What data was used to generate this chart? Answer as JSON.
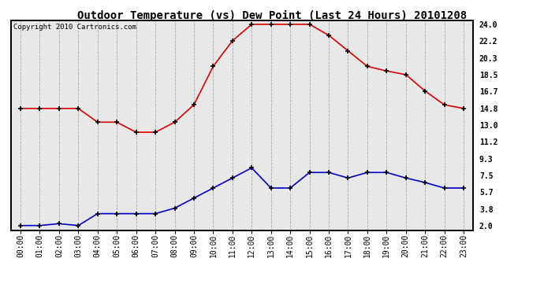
{
  "title": "Outdoor Temperature (vs) Dew Point (Last 24 Hours) 20101208",
  "copyright": "Copyright 2010 Cartronics.com",
  "hours": [
    "00:00",
    "01:00",
    "02:00",
    "03:00",
    "04:00",
    "05:00",
    "06:00",
    "07:00",
    "08:00",
    "09:00",
    "10:00",
    "11:00",
    "12:00",
    "13:00",
    "14:00",
    "15:00",
    "16:00",
    "17:00",
    "18:00",
    "19:00",
    "20:00",
    "21:00",
    "22:00",
    "23:00"
  ],
  "temp": [
    14.8,
    14.8,
    14.8,
    14.8,
    13.3,
    13.3,
    12.2,
    12.2,
    13.3,
    15.2,
    19.4,
    22.2,
    24.0,
    24.0,
    24.0,
    24.0,
    22.8,
    21.1,
    19.4,
    18.9,
    18.5,
    16.7,
    15.2,
    14.8
  ],
  "dew": [
    2.0,
    2.0,
    2.2,
    2.0,
    3.3,
    3.3,
    3.3,
    3.3,
    3.9,
    5.0,
    6.1,
    7.2,
    8.3,
    6.1,
    6.1,
    7.8,
    7.8,
    7.2,
    7.8,
    7.8,
    7.2,
    6.7,
    6.1,
    6.1
  ],
  "temp_color": "#dd0000",
  "dew_color": "#0000cc",
  "yticks_right": [
    2.0,
    3.8,
    5.7,
    7.5,
    9.3,
    11.2,
    13.0,
    14.8,
    16.7,
    18.5,
    20.3,
    22.2,
    24.0
  ],
  "ymin": 1.5,
  "ymax": 24.4,
  "bg_color": "#ffffff",
  "plot_bg_color": "#e8e8e8",
  "grid_color": "#aaaaaa",
  "marker": "+",
  "marker_size": 5,
  "marker_edge_width": 1.2,
  "line_width": 1.2,
  "title_fontsize": 10,
  "tick_fontsize": 7,
  "copyright_fontsize": 6.5
}
